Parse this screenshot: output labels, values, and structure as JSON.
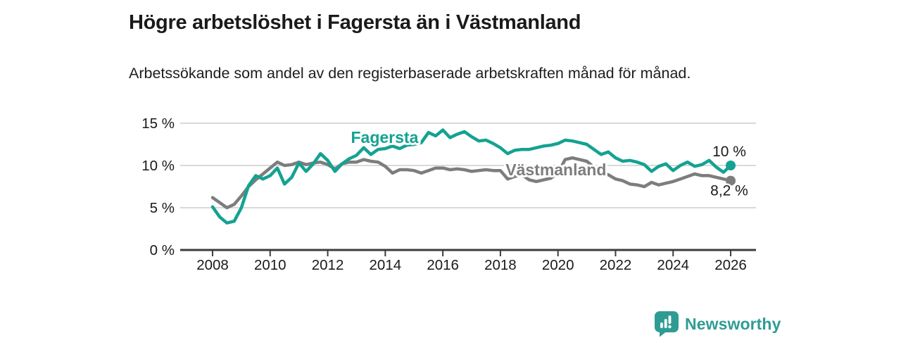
{
  "header": {
    "title": "Högre arbetslöshet i Fagersta än i Västmanland",
    "subtitle": "Arbetssökande som andel av den registerbaserade arbetskraften månad för månad."
  },
  "chart_data": {
    "type": "line",
    "title": "Högre arbetslöshet i Fagersta än i Västmanland",
    "subtitle": "Arbetssökande som andel av den registerbaserade arbetskraften månad för månad.",
    "xlabel": "",
    "ylabel": "",
    "grid": "horizontal",
    "legend_position": "inline-labels",
    "xlim": [
      2007.9,
      2026.9
    ],
    "ylim": [
      0,
      16.5
    ],
    "xticks": [
      2008,
      2010,
      2012,
      2014,
      2016,
      2018,
      2020,
      2022,
      2024,
      2026
    ],
    "yticks": [
      {
        "label": "0 %",
        "value": 0
      },
      {
        "label": "5 %",
        "value": 5
      },
      {
        "label": "10 %",
        "value": 10
      },
      {
        "label": "15 %",
        "value": 15
      }
    ],
    "x": [
      2008.0,
      2008.25,
      2008.5,
      2008.75,
      2009.0,
      2009.25,
      2009.5,
      2009.75,
      2010.0,
      2010.25,
      2010.5,
      2010.75,
      2011.0,
      2011.25,
      2011.5,
      2011.75,
      2012.0,
      2012.25,
      2012.5,
      2012.75,
      2013.0,
      2013.25,
      2013.5,
      2013.75,
      2014.0,
      2014.25,
      2014.5,
      2014.75,
      2015.0,
      2015.25,
      2015.5,
      2015.75,
      2016.0,
      2016.25,
      2016.5,
      2016.75,
      2017.0,
      2017.25,
      2017.5,
      2017.75,
      2018.0,
      2018.25,
      2018.5,
      2018.75,
      2019.0,
      2019.25,
      2019.5,
      2019.75,
      2020.0,
      2020.25,
      2020.5,
      2020.75,
      2021.0,
      2021.25,
      2021.5,
      2021.75,
      2022.0,
      2022.25,
      2022.5,
      2022.75,
      2023.0,
      2023.25,
      2023.5,
      2023.75,
      2024.0,
      2024.25,
      2024.5,
      2024.75,
      2025.0,
      2025.25,
      2025.5,
      2025.75,
      2026.0
    ],
    "series": [
      {
        "name": "Västmanland",
        "color": "#7d7d7d",
        "end_label": "8,2 %",
        "end_value": 8.2,
        "values": [
          6.2,
          5.6,
          5.0,
          5.4,
          6.4,
          7.5,
          8.3,
          9.0,
          9.7,
          10.4,
          10.0,
          10.1,
          10.4,
          10.1,
          10.3,
          10.4,
          10.1,
          9.6,
          10.2,
          10.4,
          10.4,
          10.7,
          10.5,
          10.4,
          9.9,
          9.1,
          9.5,
          9.5,
          9.4,
          9.1,
          9.4,
          9.7,
          9.7,
          9.5,
          9.6,
          9.5,
          9.3,
          9.4,
          9.5,
          9.4,
          9.4,
          8.4,
          8.7,
          8.9,
          8.3,
          8.1,
          8.3,
          8.5,
          9.1,
          10.7,
          10.9,
          10.7,
          10.5,
          9.8,
          9.1,
          8.9,
          8.4,
          8.2,
          7.8,
          7.7,
          7.5,
          8.0,
          7.7,
          7.9,
          8.1,
          8.4,
          8.7,
          9.0,
          8.8,
          8.8,
          8.6,
          8.4,
          8.2
        ]
      },
      {
        "name": "Fagersta",
        "color": "#14a292",
        "end_label": "10 %",
        "end_value": 10.0,
        "values": [
          5.1,
          3.9,
          3.2,
          3.4,
          5.0,
          7.6,
          8.8,
          8.4,
          8.8,
          9.7,
          7.8,
          8.6,
          10.3,
          9.3,
          10.2,
          11.4,
          10.6,
          9.3,
          10.2,
          10.8,
          11.2,
          12.1,
          11.3,
          11.9,
          12.0,
          12.3,
          12.0,
          12.4,
          12.5,
          12.7,
          13.9,
          13.5,
          14.2,
          13.3,
          13.7,
          14.0,
          13.4,
          12.9,
          13.0,
          12.6,
          12.1,
          11.4,
          11.8,
          11.9,
          11.9,
          12.1,
          12.3,
          12.4,
          12.6,
          13.0,
          12.9,
          12.7,
          12.5,
          11.9,
          11.3,
          11.6,
          10.9,
          10.5,
          10.6,
          10.4,
          10.1,
          9.3,
          9.9,
          10.2,
          9.4,
          10.0,
          10.4,
          9.9,
          10.1,
          10.6,
          9.8,
          9.2,
          10.0
        ]
      }
    ],
    "colors": {
      "grid": "#d9d9d9",
      "axis": "#3d3d3d",
      "tick_label": "#1a1a1a",
      "annotation": "#1a1a1a"
    }
  },
  "footer": {
    "brand": "Newsworthy",
    "logo_icon": "bar-chart-speech-bubble-icon",
    "brand_color": "#2f9c94"
  }
}
